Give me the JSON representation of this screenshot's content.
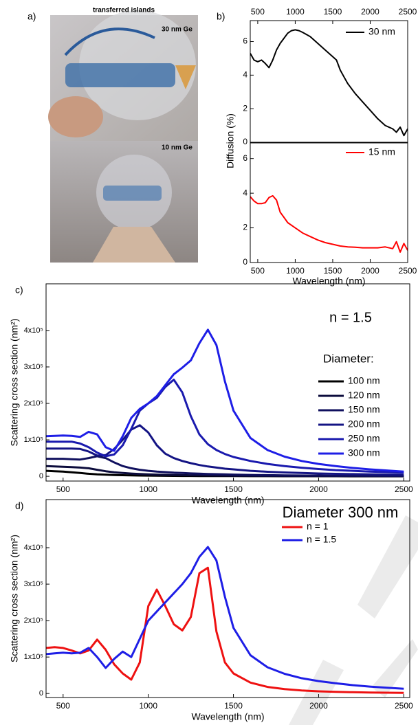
{
  "photo": {
    "panel_label": "a)",
    "title": "transferred islands",
    "labels": [
      "30 nm Ge",
      "10 nm Ge"
    ]
  },
  "chart_data": [
    {
      "type": "line",
      "panel_label": "b)",
      "ylabel": "Diffusion (%)",
      "x": [
        400,
        450,
        500,
        550,
        600,
        650,
        700,
        750,
        800,
        850,
        900,
        950,
        1000,
        1050,
        1100,
        1200,
        1300,
        1400,
        1500,
        1550,
        1600,
        1650,
        1700,
        1800,
        1900,
        2000,
        2100,
        2200,
        2300,
        2350,
        2400,
        2450,
        2500
      ],
      "series": [
        {
          "name": "30 nm",
          "color": "#000000",
          "values": [
            5.3,
            4.9,
            4.8,
            4.9,
            4.7,
            4.45,
            4.9,
            5.5,
            5.9,
            6.2,
            6.5,
            6.65,
            6.7,
            6.65,
            6.55,
            6.3,
            5.9,
            5.5,
            5.1,
            4.9,
            4.3,
            3.9,
            3.5,
            2.9,
            2.4,
            1.9,
            1.4,
            1.0,
            0.8,
            0.6,
            0.9,
            0.4,
            0.8
          ]
        }
      ],
      "xlim": [
        400,
        2500
      ],
      "ylim": [
        0,
        7.25
      ],
      "xticks": [
        500,
        1000,
        1500,
        2000,
        2500
      ],
      "yticks": [
        0,
        2,
        4,
        6
      ]
    },
    {
      "type": "line",
      "xlabel": "Wavelength (nm)",
      "x": [
        400,
        450,
        500,
        550,
        600,
        650,
        700,
        750,
        800,
        850,
        900,
        1000,
        1100,
        1200,
        1300,
        1400,
        1500,
        1600,
        1700,
        1800,
        1900,
        2000,
        2100,
        2200,
        2300,
        2350,
        2400,
        2450,
        2500
      ],
      "series": [
        {
          "name": "15 nm",
          "color": "#ff0000",
          "values": [
            3.8,
            3.55,
            3.4,
            3.4,
            3.45,
            3.75,
            3.85,
            3.6,
            2.9,
            2.6,
            2.3,
            2.0,
            1.7,
            1.5,
            1.3,
            1.15,
            1.05,
            0.95,
            0.9,
            0.88,
            0.85,
            0.85,
            0.85,
            0.9,
            0.8,
            1.2,
            0.6,
            1.1,
            0.7
          ]
        }
      ],
      "xlim": [
        400,
        2500
      ],
      "ylim": [
        0,
        6.9
      ],
      "xticks": [
        500,
        1000,
        1500,
        2000,
        2500
      ],
      "yticks": [
        0,
        2,
        4,
        6
      ]
    },
    {
      "type": "line",
      "panel_label": "c)",
      "xlabel": "Wavelength (nm)",
      "ylabel": "Scattering cross section (nm²)",
      "annotation": "n = 1.5",
      "legend_title": "Diameter:",
      "x": [
        400,
        450,
        500,
        550,
        600,
        650,
        700,
        750,
        800,
        850,
        900,
        950,
        1000,
        1050,
        1100,
        1150,
        1200,
        1250,
        1300,
        1350,
        1400,
        1450,
        1500,
        1600,
        1700,
        1800,
        1900,
        2000,
        2100,
        2200,
        2300,
        2400,
        2500
      ],
      "series": [
        {
          "name": "100 nm",
          "color": "#000000",
          "values": [
            15000,
            14000,
            13000,
            11000,
            9000,
            7000,
            5500,
            4500,
            3500,
            3000,
            2500,
            2000,
            1800,
            1500,
            1300,
            1100,
            1000,
            900,
            800,
            700,
            600,
            550,
            500,
            400,
            300,
            250,
            200,
            150,
            120,
            100,
            90,
            80,
            70
          ]
        },
        {
          "name": "120 nm",
          "color": "#0c0c3c",
          "values": [
            28000,
            27000,
            26000,
            25000,
            24000,
            22000,
            18000,
            14000,
            11000,
            9000,
            7500,
            6500,
            5500,
            4800,
            4200,
            3700,
            3300,
            2900,
            2600,
            2300,
            2100,
            1900,
            1700,
            1400,
            1200,
            1000,
            850,
            700,
            600,
            500,
            450,
            400,
            350
          ]
        },
        {
          "name": "150 nm",
          "color": "#10105e",
          "values": [
            48000,
            48000,
            48000,
            47000,
            46000,
            50000,
            55000,
            50000,
            38000,
            28000,
            22000,
            18000,
            15000,
            13000,
            11500,
            10000,
            9000,
            8000,
            7200,
            6500,
            5800,
            5200,
            4700,
            3800,
            3200,
            2700,
            2300,
            2000,
            1700,
            1500,
            1300,
            1100,
            1000
          ]
        },
        {
          "name": "200 nm",
          "color": "#141484",
          "values": [
            76000,
            76000,
            76000,
            76000,
            75000,
            68000,
            57000,
            58000,
            75000,
            100000,
            128000,
            140000,
            120000,
            85000,
            62000,
            50000,
            42000,
            36000,
            31000,
            27000,
            24000,
            21000,
            19000,
            15000,
            12500,
            10500,
            9000,
            7800,
            6800,
            6000,
            5300,
            4700,
            4200
          ]
        },
        {
          "name": "250 nm",
          "color": "#1a1aae",
          "values": [
            95000,
            95000,
            95000,
            95000,
            90000,
            80000,
            65000,
            55000,
            60000,
            85000,
            130000,
            180000,
            200000,
            215000,
            245000,
            265000,
            230000,
            165000,
            115000,
            88000,
            72000,
            61000,
            53000,
            42000,
            34000,
            28000,
            23500,
            20000,
            17000,
            15000,
            13000,
            11500,
            10000
          ]
        },
        {
          "name": "300 nm",
          "color": "#1e1ee6",
          "values": [
            110000,
            111000,
            112000,
            111000,
            108000,
            122000,
            115000,
            80000,
            70000,
            110000,
            160000,
            185000,
            200000,
            220000,
            250000,
            280000,
            298000,
            318000,
            365000,
            402000,
            360000,
            260000,
            180000,
            105000,
            72000,
            54000,
            42000,
            34000,
            28000,
            23000,
            19000,
            16000,
            13000
          ]
        }
      ],
      "xlim": [
        400,
        2535
      ],
      "ylim": [
        -13000,
        528000
      ],
      "xticks": [
        500,
        1000,
        1500,
        2000,
        2500
      ],
      "yticks": [
        0,
        {
          "value": 100000,
          "label": "1x10⁵"
        },
        {
          "value": 200000,
          "label": "2x10⁵"
        },
        {
          "value": 300000,
          "label": "3x10⁵"
        },
        {
          "value": 400000,
          "label": "4x10⁵"
        }
      ]
    },
    {
      "type": "line",
      "panel_label": "d)",
      "xlabel": "Wavelength (nm)",
      "ylabel": "Scattering cross section (nm²)",
      "annotation": "Diameter 300 nm",
      "x": [
        400,
        450,
        500,
        550,
        600,
        650,
        700,
        750,
        800,
        850,
        900,
        950,
        1000,
        1050,
        1100,
        1150,
        1200,
        1250,
        1300,
        1350,
        1400,
        1450,
        1500,
        1600,
        1700,
        1800,
        1900,
        2000,
        2100,
        2200,
        2300,
        2400,
        2500
      ],
      "series": [
        {
          "name": "n = 1",
          "color": "#ee1111",
          "values": [
            125000,
            127000,
            125000,
            118000,
            110000,
            118000,
            148000,
            120000,
            80000,
            55000,
            38000,
            85000,
            240000,
            285000,
            240000,
            190000,
            173000,
            210000,
            330000,
            345000,
            170000,
            85000,
            55000,
            30000,
            18000,
            12000,
            8500,
            6000,
            4500,
            3500,
            2800,
            2200,
            1800
          ]
        },
        {
          "name": "n = 1.5",
          "color": "#1e1ee6",
          "values": [
            108000,
            110000,
            112000,
            110000,
            112000,
            125000,
            100000,
            70000,
            95000,
            115000,
            100000,
            150000,
            200000,
            225000,
            250000,
            275000,
            300000,
            330000,
            375000,
            402000,
            365000,
            265000,
            180000,
            105000,
            72000,
            54000,
            42000,
            34000,
            28000,
            23000,
            19000,
            16000,
            13000
          ]
        }
      ],
      "xlim": [
        400,
        2535
      ],
      "ylim": [
        -11000,
        532000
      ],
      "xticks": [
        500,
        1000,
        1500,
        2000,
        2500
      ],
      "yticks": [
        0,
        {
          "value": 100000,
          "label": "1x10⁵"
        },
        {
          "value": 200000,
          "label": "2x10⁵"
        },
        {
          "value": 300000,
          "label": "3x10⁵"
        },
        {
          "value": 400000,
          "label": "4x10⁵"
        }
      ]
    }
  ]
}
